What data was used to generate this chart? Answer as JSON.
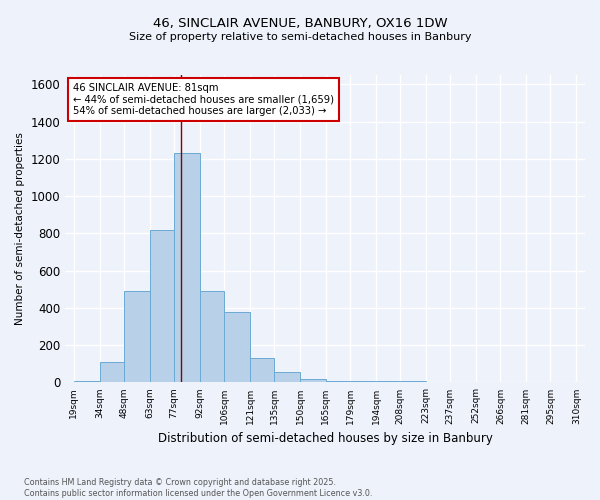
{
  "title_line1": "46, SINCLAIR AVENUE, BANBURY, OX16 1DW",
  "title_line2": "Size of property relative to semi-detached houses in Banbury",
  "xlabel": "Distribution of semi-detached houses by size in Banbury",
  "ylabel": "Number of semi-detached properties",
  "footnote": "Contains HM Land Registry data © Crown copyright and database right 2025.\nContains public sector information licensed under the Open Government Licence v3.0.",
  "bin_edges": [
    19,
    34,
    48,
    63,
    77,
    92,
    106,
    121,
    135,
    150,
    165,
    179,
    194,
    208,
    223,
    237,
    252,
    266,
    281,
    295,
    310
  ],
  "bar_heights": [
    5,
    110,
    490,
    820,
    1230,
    490,
    380,
    130,
    55,
    20,
    10,
    5,
    5,
    5,
    0,
    0,
    0,
    0,
    0,
    0
  ],
  "bar_color": "#b8d0e8",
  "bar_edge_color": "#6aaad4",
  "property_size": 81,
  "vline_color": "#8b0000",
  "annotation_text": "46 SINCLAIR AVENUE: 81sqm\n← 44% of semi-detached houses are smaller (1,659)\n54% of semi-detached houses are larger (2,033) →",
  "annotation_box_color": "#ffffff",
  "annotation_box_edge_color": "#cc0000",
  "ylim": [
    0,
    1650
  ],
  "yticks": [
    0,
    200,
    400,
    600,
    800,
    1000,
    1200,
    1400,
    1600
  ],
  "background_color": "#eef2fb",
  "grid_color": "#ffffff",
  "xlim_left": 14,
  "xlim_right": 315
}
